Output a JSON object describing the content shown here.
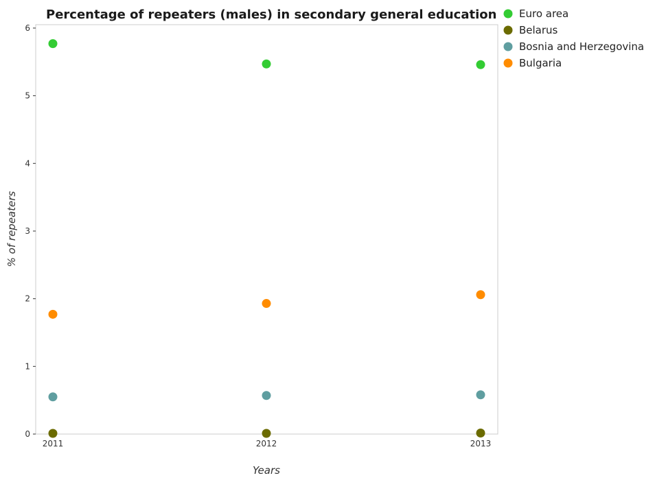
{
  "chart_data": {
    "type": "scatter",
    "title": "Percentage of repeaters (males) in secondary general education",
    "xlabel": "Years",
    "ylabel": "% of repeaters",
    "categories": [
      "2011",
      "2012",
      "2013"
    ],
    "yticks": [
      "0",
      "1",
      "2",
      "3",
      "4",
      "5",
      "6"
    ],
    "ylim": [
      0,
      6.05
    ],
    "legend_position": "top-right",
    "grid": false,
    "series": [
      {
        "name": "Euro area",
        "color": "#33cc33",
        "values": [
          5.77,
          5.47,
          5.46
        ]
      },
      {
        "name": "Belarus",
        "color": "#6b6b00",
        "values": [
          0.01,
          0.01,
          0.015
        ]
      },
      {
        "name": "Bosnia and Herzegovina",
        "color": "#5f9ea0",
        "values": [
          0.55,
          0.57,
          0.58
        ]
      },
      {
        "name": "Bulgaria",
        "color": "#ff8c00",
        "values": [
          1.77,
          1.93,
          2.06
        ]
      }
    ]
  }
}
